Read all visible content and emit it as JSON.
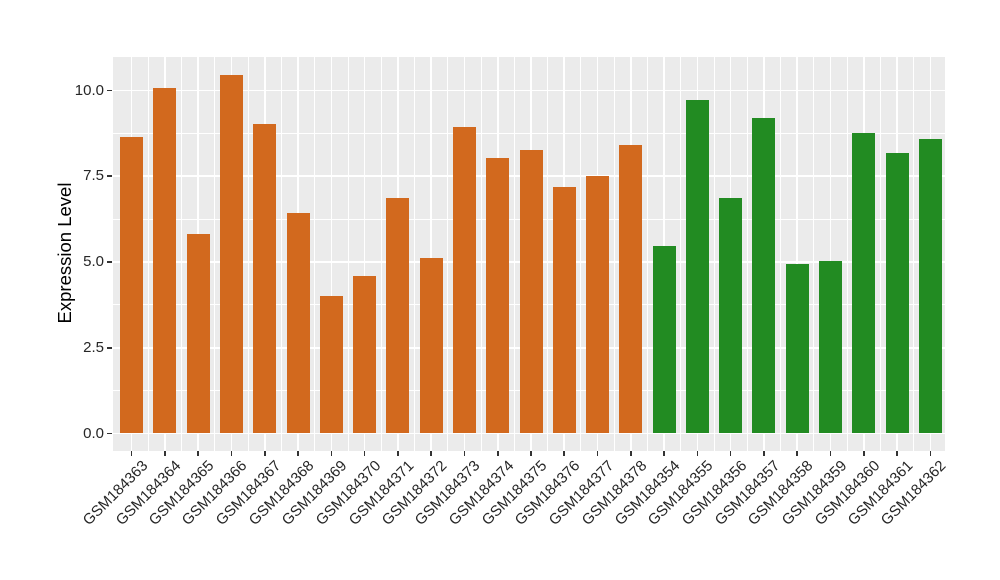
{
  "chart_data": {
    "type": "bar",
    "title": "",
    "xlabel": "",
    "ylabel": "Expression Level",
    "ylim": [
      0,
      10.98
    ],
    "y_ticks": [
      0.0,
      2.5,
      5.0,
      7.5,
      10.0
    ],
    "y_tick_labels": [
      "0.0",
      "2.5",
      "5.0",
      "7.5",
      "10.0"
    ],
    "y_minor_ticks": [
      1.25,
      3.75,
      6.25,
      8.75
    ],
    "grid": true,
    "legend_position": "none",
    "panel_bg_color": "#EBEBEB",
    "grid_color": "#FFFFFF",
    "axis_text_color": "#262626",
    "groups": [
      {
        "name": "group-1",
        "color": "#D2691E"
      },
      {
        "name": "group-2",
        "color": "#228B22"
      }
    ],
    "categories": [
      "GSM184363",
      "GSM184364",
      "GSM184365",
      "GSM184366",
      "GSM184367",
      "GSM184368",
      "GSM184369",
      "GSM184370",
      "GSM184371",
      "GSM184372",
      "GSM184373",
      "GSM184374",
      "GSM184375",
      "GSM184376",
      "GSM184377",
      "GSM184378",
      "GSM184354",
      "GSM184355",
      "GSM184356",
      "GSM184357",
      "GSM184358",
      "GSM184359",
      "GSM184360",
      "GSM184361",
      "GSM184362"
    ],
    "bars": [
      {
        "label": "GSM184363",
        "value": 8.64,
        "group": 0
      },
      {
        "label": "GSM184364",
        "value": 10.07,
        "group": 0
      },
      {
        "label": "GSM184365",
        "value": 5.81,
        "group": 0
      },
      {
        "label": "GSM184366",
        "value": 10.45,
        "group": 0
      },
      {
        "label": "GSM184367",
        "value": 9.03,
        "group": 0
      },
      {
        "label": "GSM184368",
        "value": 6.44,
        "group": 0
      },
      {
        "label": "GSM184369",
        "value": 4.02,
        "group": 0
      },
      {
        "label": "GSM184370",
        "value": 4.59,
        "group": 0
      },
      {
        "label": "GSM184371",
        "value": 6.88,
        "group": 0
      },
      {
        "label": "GSM184372",
        "value": 5.13,
        "group": 0
      },
      {
        "label": "GSM184373",
        "value": 8.93,
        "group": 0
      },
      {
        "label": "GSM184374",
        "value": 8.03,
        "group": 0
      },
      {
        "label": "GSM184375",
        "value": 8.27,
        "group": 0
      },
      {
        "label": "GSM184376",
        "value": 7.18,
        "group": 0
      },
      {
        "label": "GSM184377",
        "value": 7.52,
        "group": 0
      },
      {
        "label": "GSM184378",
        "value": 8.42,
        "group": 0
      },
      {
        "label": "GSM184354",
        "value": 5.47,
        "group": 1
      },
      {
        "label": "GSM184355",
        "value": 9.73,
        "group": 1
      },
      {
        "label": "GSM184356",
        "value": 6.88,
        "group": 1
      },
      {
        "label": "GSM184357",
        "value": 9.2,
        "group": 1
      },
      {
        "label": "GSM184358",
        "value": 4.93,
        "group": 1
      },
      {
        "label": "GSM184359",
        "value": 5.04,
        "group": 1
      },
      {
        "label": "GSM184360",
        "value": 8.77,
        "group": 1
      },
      {
        "label": "GSM184361",
        "value": 8.17,
        "group": 1
      },
      {
        "label": "GSM184362",
        "value": 8.59,
        "group": 1
      }
    ]
  }
}
